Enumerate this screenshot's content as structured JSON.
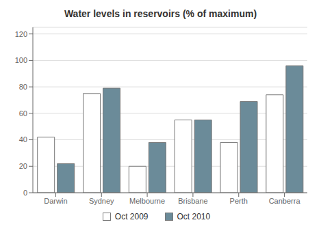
{
  "chart_data": {
    "type": "bar",
    "title": "Water levels in reservoirs (% of maximum)",
    "categories": [
      "Darwin",
      "Sydney",
      "Melbourne",
      "Brisbane",
      "Perth",
      "Canberra"
    ],
    "series": [
      {
        "name": "Oct 2009",
        "color": "#ffffff",
        "values": [
          42,
          75,
          20,
          55,
          38,
          74
        ]
      },
      {
        "name": "Oct 2010",
        "color": "#6b8b99",
        "values": [
          22,
          79,
          38,
          55,
          69,
          96
        ]
      }
    ],
    "ylim": [
      0,
      125
    ],
    "yticks": [
      0,
      20,
      40,
      60,
      80,
      100,
      120
    ],
    "grid": true,
    "legend": "bottom"
  }
}
